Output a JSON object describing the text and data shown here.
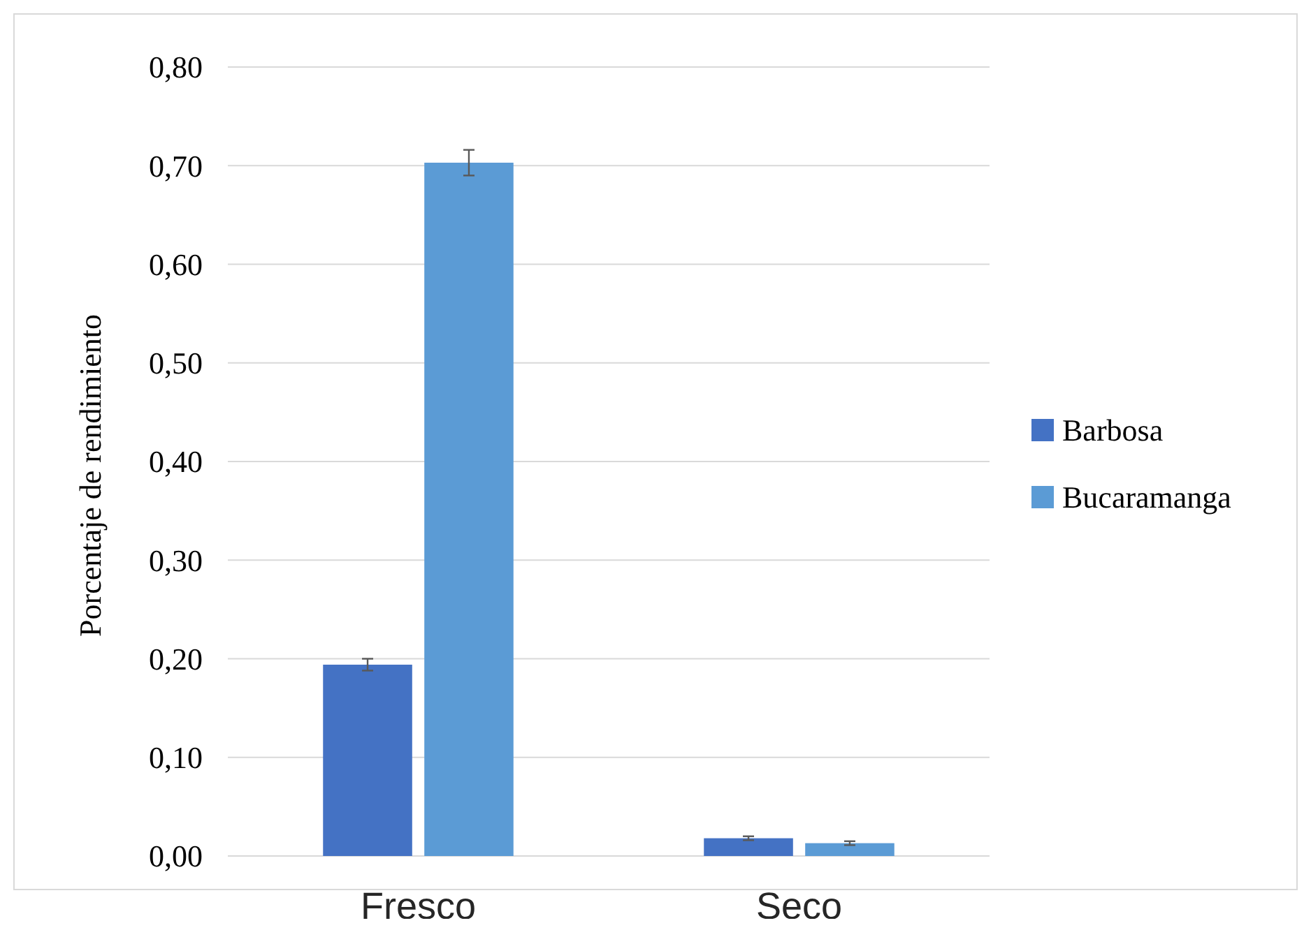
{
  "chart_data": {
    "type": "bar",
    "ylabel": "Porcentaje de rendimiento",
    "categories": [
      "Fresco",
      "Seco"
    ],
    "series": [
      {
        "name": "Barbosa",
        "color": "#4472c4",
        "values": [
          0.194,
          0.018
        ],
        "errors": [
          0.006,
          0.002
        ]
      },
      {
        "name": "Bucaramanga",
        "color": "#5b9bd5",
        "values": [
          0.703,
          0.013
        ],
        "errors": [
          0.013,
          0.002
        ]
      }
    ],
    "ylim": [
      0,
      0.8
    ],
    "yticks": [
      {
        "value": 0,
        "label": "0,00"
      },
      {
        "value": 0.1,
        "label": "0,10"
      },
      {
        "value": 0.2,
        "label": "0,20"
      },
      {
        "value": 0.3,
        "label": "0,30"
      },
      {
        "value": 0.4,
        "label": "0,40"
      },
      {
        "value": 0.5,
        "label": "0,50"
      },
      {
        "value": 0.6,
        "label": "0,60"
      },
      {
        "value": 0.7,
        "label": "0,70"
      },
      {
        "value": 0.8,
        "label": "0,80"
      }
    ],
    "grid": "y",
    "legend": "right"
  }
}
